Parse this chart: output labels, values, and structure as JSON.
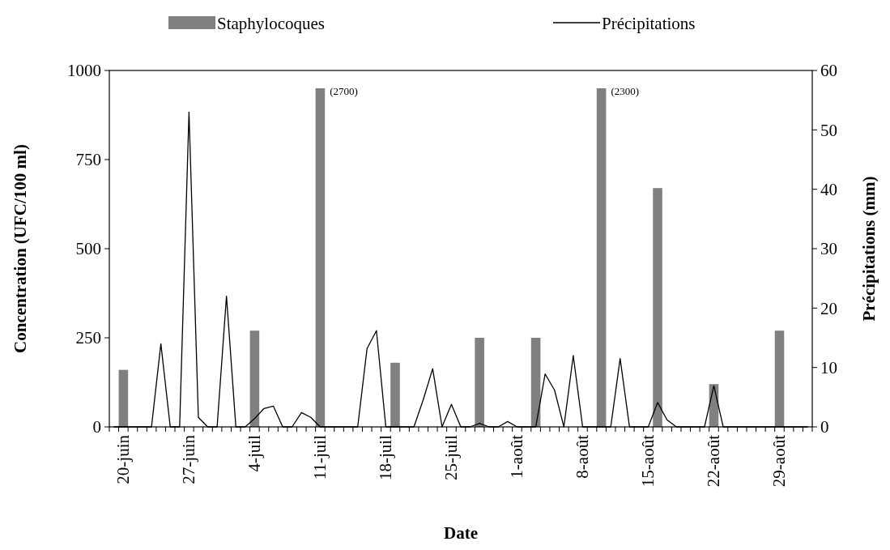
{
  "chart_data": {
    "type": "bar",
    "xlabel": "Date",
    "ylabel": "Concentration (UFC/100 ml)",
    "y2label": "Précipitations (mm)",
    "categories": [
      null,
      "20-juin",
      null,
      null,
      null,
      null,
      null,
      null,
      "27-juin",
      null,
      null,
      null,
      null,
      null,
      null,
      "4-juil",
      null,
      null,
      null,
      null,
      null,
      null,
      "11-juil",
      null,
      null,
      null,
      null,
      null,
      null,
      "18-juil",
      null,
      null,
      null,
      null,
      null,
      null,
      "25-juil",
      null,
      null,
      null,
      null,
      null,
      null,
      "1-août",
      null,
      null,
      null,
      null,
      null,
      null,
      "8-août",
      null,
      null,
      null,
      null,
      null,
      null,
      "15-août",
      null,
      null,
      null,
      null,
      null,
      null,
      "22-août",
      null,
      null,
      null,
      null,
      null,
      null,
      "29-août",
      null,
      null,
      null
    ],
    "series": [
      {
        "name": "Staphylocoques",
        "color": "#808080",
        "values": [
          null,
          160,
          null,
          null,
          null,
          null,
          null,
          null,
          null,
          null,
          null,
          null,
          null,
          null,
          null,
          270,
          null,
          null,
          null,
          null,
          null,
          null,
          950,
          null,
          null,
          null,
          null,
          null,
          null,
          null,
          180,
          null,
          null,
          null,
          null,
          null,
          null,
          null,
          null,
          250,
          null,
          null,
          null,
          null,
          null,
          250,
          null,
          null,
          null,
          null,
          null,
          null,
          950,
          null,
          null,
          null,
          null,
          null,
          670,
          null,
          null,
          null,
          null,
          null,
          120,
          null,
          null,
          null,
          null,
          null,
          null,
          270,
          null,
          null,
          null
        ]
      },
      {
        "name": "Précipitations",
        "type": "line",
        "axis": "y2",
        "color": "#000000",
        "values": [
          0,
          0,
          0,
          0,
          0,
          14,
          0,
          0,
          53,
          1.6,
          0,
          0,
          22,
          0,
          0,
          1.4,
          3.1,
          3.5,
          0,
          0,
          2.4,
          1.6,
          0,
          0,
          0,
          0,
          0,
          13.2,
          16.2,
          0,
          0,
          0,
          0,
          4.6,
          9.8,
          0,
          3.8,
          0,
          0,
          0.6,
          0,
          0,
          0.9,
          0,
          0,
          0,
          8.9,
          6.2,
          0,
          12,
          0,
          0,
          0,
          0,
          11.5,
          0,
          0,
          0,
          4.1,
          1.2,
          0,
          0,
          0,
          0,
          6.9,
          0,
          0,
          0,
          0,
          0,
          0,
          0,
          0,
          0,
          0
        ]
      }
    ],
    "annotations": [
      {
        "text": "(2700)",
        "x": "11-juil",
        "y": 950
      },
      "(2300)"
    ],
    "ylim": [
      0,
      1000
    ],
    "yticks": [
      0,
      250,
      500,
      750,
      1000
    ],
    "y2lim": [
      0,
      60
    ],
    "y2ticks": [
      0,
      10,
      20,
      30,
      40,
      50,
      60
    ],
    "grid": false,
    "legend": "top",
    "marker": "none",
    "line_style": "solid"
  }
}
